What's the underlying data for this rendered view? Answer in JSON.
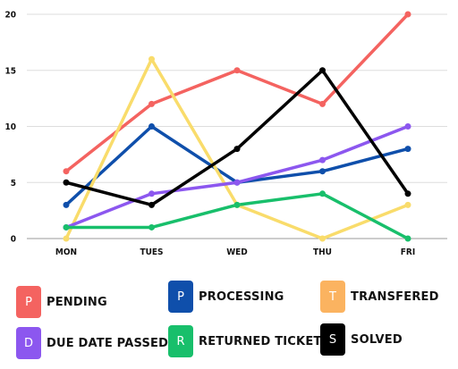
{
  "chart_data": {
    "type": "line",
    "categories": [
      "MON",
      "TUES",
      "WED",
      "THU",
      "FRI"
    ],
    "ylim": [
      0,
      20
    ],
    "yticks": [
      0,
      5,
      10,
      15,
      20
    ],
    "grid": true,
    "legend_position": "bottom",
    "series": [
      {
        "name": "PENDING",
        "letter": "P",
        "color": "#f46360",
        "values": [
          6,
          12,
          15,
          12,
          20
        ]
      },
      {
        "name": "PROCESSING",
        "letter": "P",
        "color": "#0f4fab",
        "values": [
          3,
          10,
          5,
          6,
          8
        ]
      },
      {
        "name": "TRANSFERED",
        "letter": "T",
        "color": "#f9dc6b",
        "swatch_color": "#fbb360",
        "values": [
          0,
          16,
          3,
          0,
          3
        ]
      },
      {
        "name": "DUE DATE PASSED",
        "letter": "D",
        "color": "#8c57ef",
        "values": [
          1,
          4,
          5,
          7,
          10
        ]
      },
      {
        "name": "RETURNED  TICKET",
        "letter": "R",
        "color": "#18bf6b",
        "values": [
          1,
          1,
          3,
          4,
          0
        ]
      },
      {
        "name": "SOLVED",
        "letter": "S",
        "color": "#000000",
        "values": [
          5,
          3,
          8,
          15,
          4
        ]
      }
    ]
  }
}
